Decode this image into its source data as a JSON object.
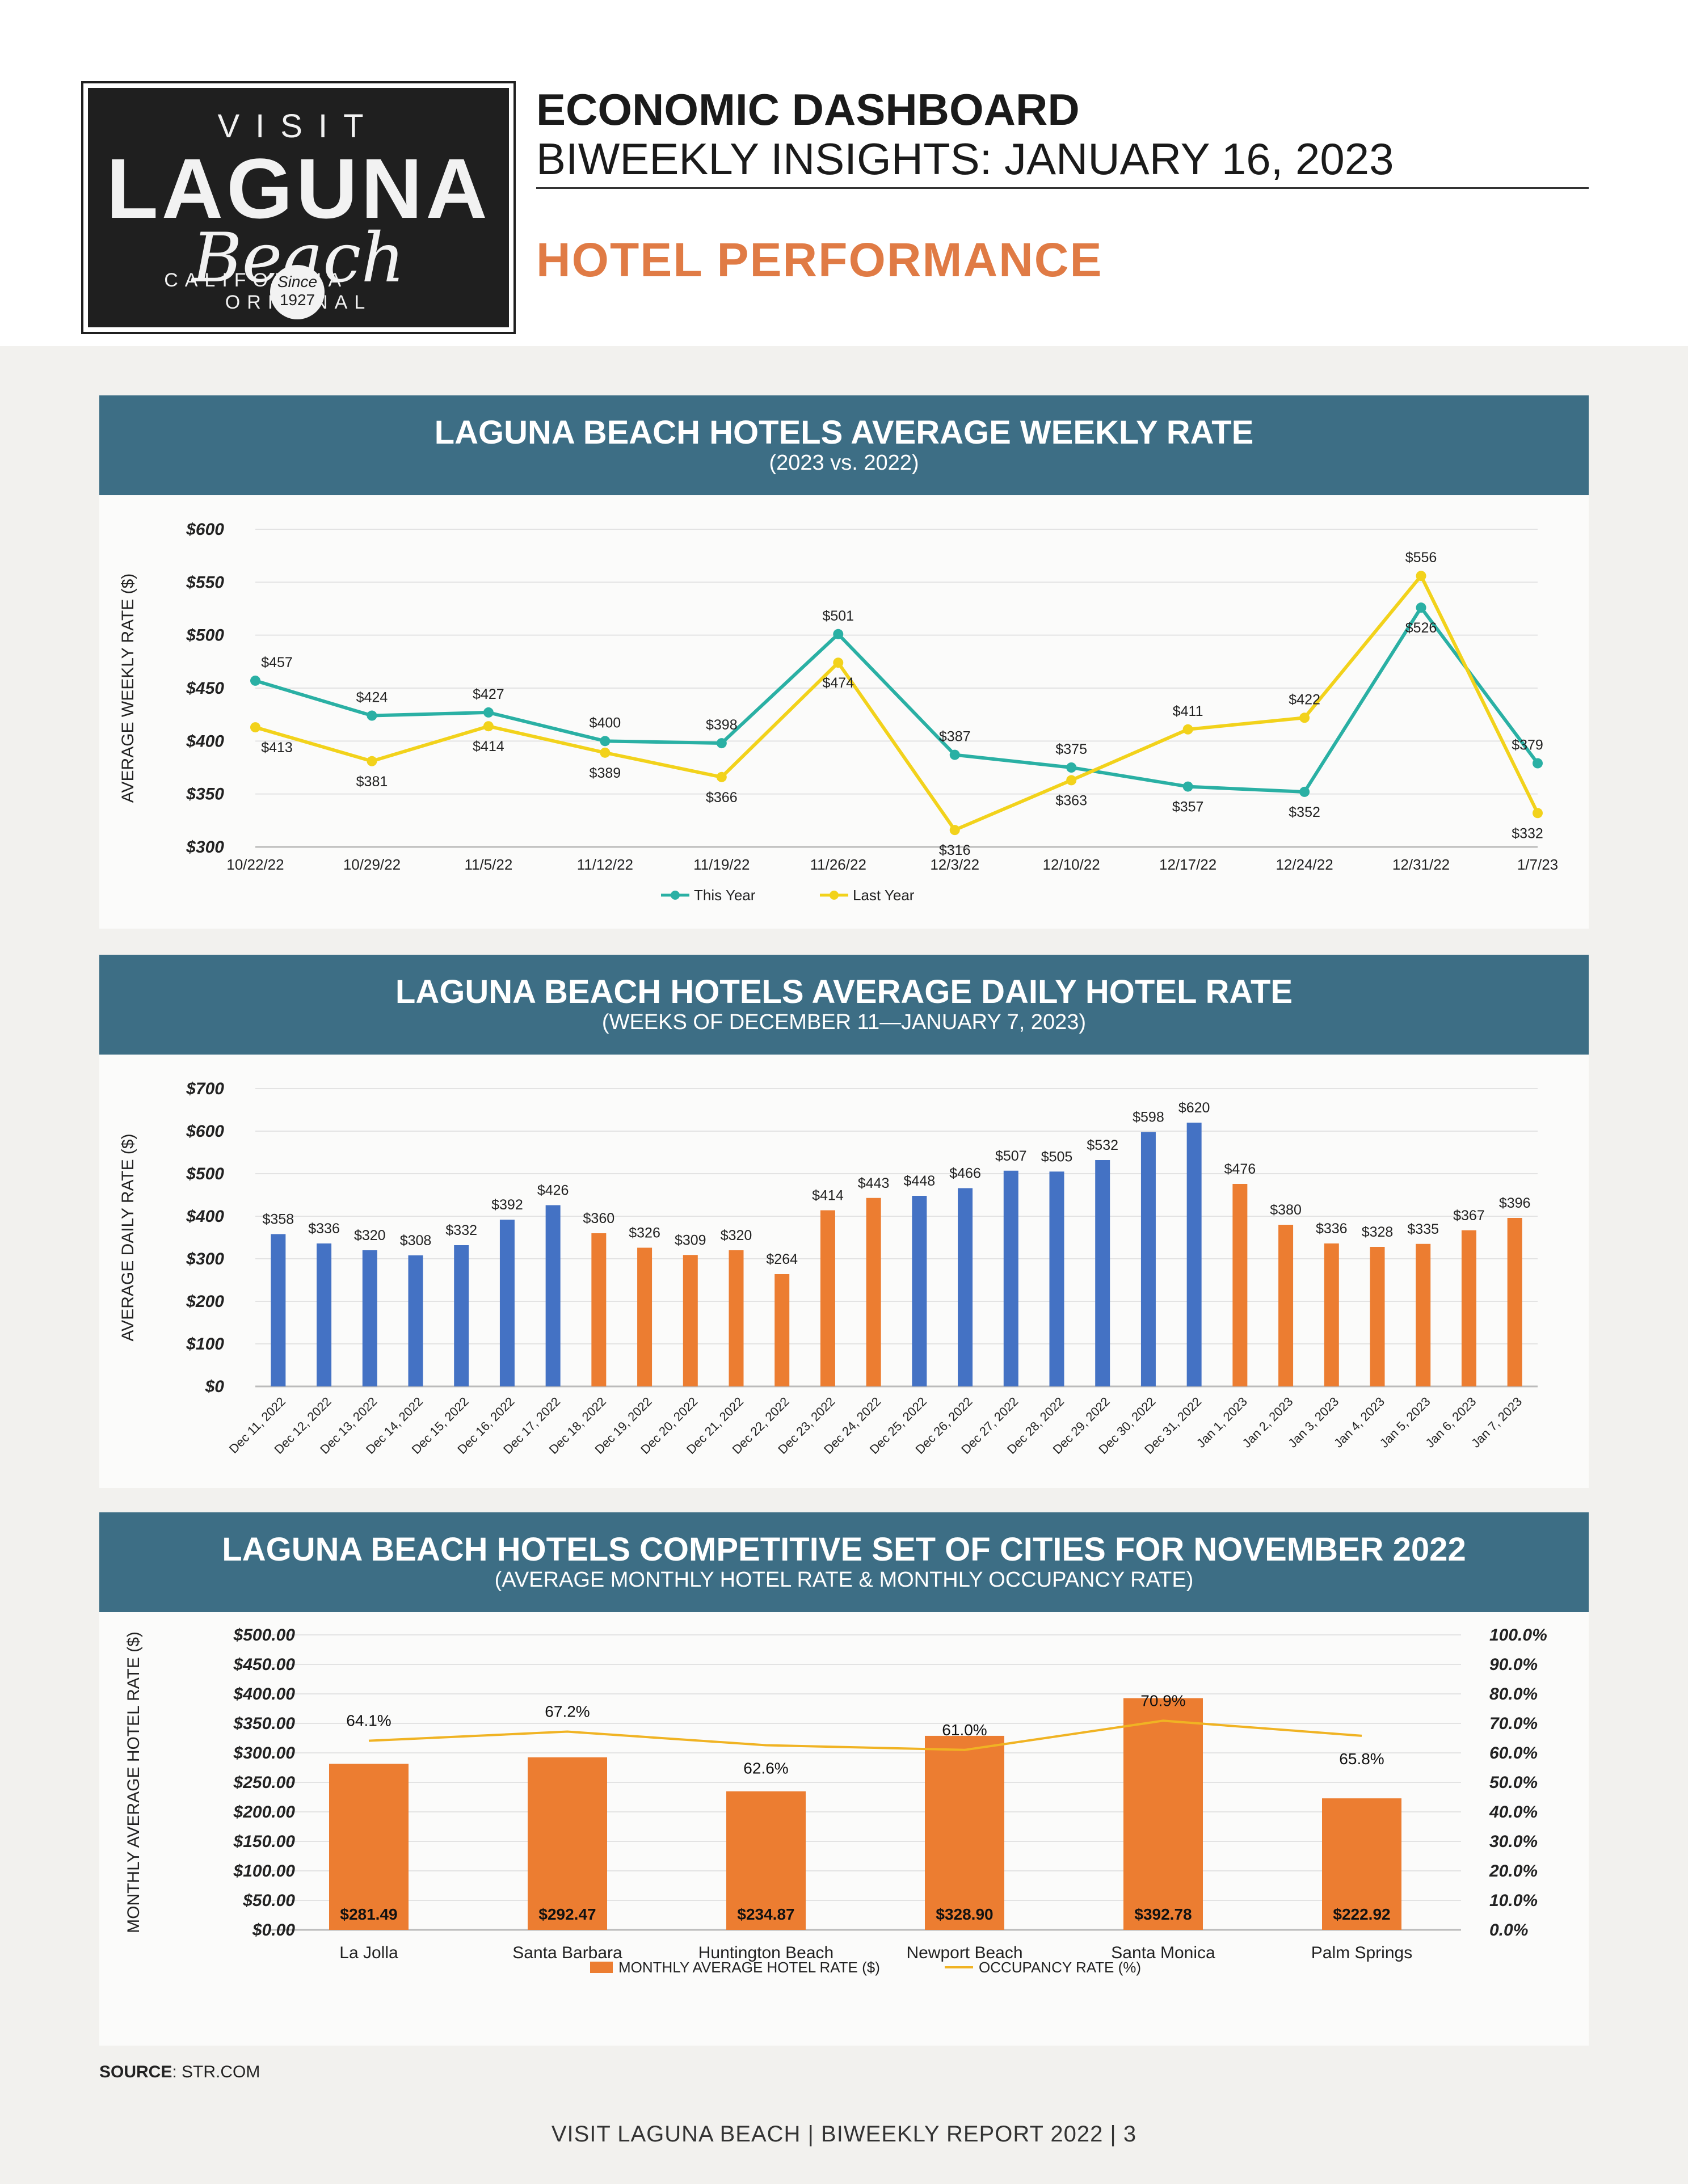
{
  "header": {
    "logo": {
      "visit": "VISIT",
      "laguna": "LAGUNA",
      "beach": "Beach",
      "tagline_left": "CALIFORNIA",
      "tagline_right": "ORIGINAL",
      "since": "Since",
      "year": "1927"
    },
    "title_line1": "ECONOMIC DASHBOARD",
    "title_line2": "BIWEEKLY INSIGHTS: JANUARY 16, 2023",
    "section_title": "HOTEL PERFORMANCE"
  },
  "colors": {
    "band": "#3d6e85",
    "this_year": "#2ab0a4",
    "last_year": "#f2d21b",
    "blue_bar": "#4472c4",
    "orange_bar": "#ec7d31",
    "occupancy": "#f0b323",
    "accent": "#e07b45"
  },
  "chart_data": [
    {
      "type": "line",
      "title": "LAGUNA BEACH HOTELS AVERAGE WEEKLY RATE",
      "subtitle": "(2023 vs. 2022)",
      "ylabel": "AVERAGE WEEKLY RATE ($)",
      "ylim": [
        300,
        600
      ],
      "yticks": [
        "$300",
        "$350",
        "$400",
        "$450",
        "$500",
        "$550",
        "$600"
      ],
      "categories": [
        "10/22/22",
        "10/29/22",
        "11/5/22",
        "11/12/22",
        "11/19/22",
        "11/26/22",
        "12/3/22",
        "12/10/22",
        "12/17/22",
        "12/24/22",
        "12/31/22",
        "1/7/23"
      ],
      "series": [
        {
          "name": "This Year",
          "values": [
            457,
            424,
            427,
            400,
            398,
            501,
            387,
            375,
            357,
            352,
            526,
            379
          ]
        },
        {
          "name": "Last Year",
          "values": [
            413,
            381,
            414,
            389,
            366,
            474,
            316,
            363,
            411,
            422,
            556,
            332
          ]
        }
      ],
      "legend": "bottom"
    },
    {
      "type": "bar",
      "title": "LAGUNA BEACH HOTELS AVERAGE DAILY HOTEL RATE",
      "subtitle": "(WEEKS OF DECEMBER 11—JANUARY 7, 2023)",
      "ylabel": "AVERAGE DAILY RATE ($)",
      "ylim": [
        0,
        700
      ],
      "yticks": [
        "$0",
        "$100",
        "$200",
        "$300",
        "$400",
        "$500",
        "$600",
        "$700"
      ],
      "categories": [
        "Dec 11, 2022",
        "Dec 12, 2022",
        "Dec 13, 2022",
        "Dec 14, 2022",
        "Dec 15, 2022",
        "Dec 16, 2022",
        "Dec 17, 2022",
        "Dec 18, 2022",
        "Dec 19, 2022",
        "Dec 20, 2022",
        "Dec 21, 2022",
        "Dec 22, 2022",
        "Dec 23, 2022",
        "Dec 24, 2022",
        "Dec 25, 2022",
        "Dec 26, 2022",
        "Dec 27, 2022",
        "Dec 28, 2022",
        "Dec 29, 2022",
        "Dec 30, 2022",
        "Dec 31, 2022",
        "Jan 1, 2023",
        "Jan 2, 2023",
        "Jan 3, 2023",
        "Jan 4, 2023",
        "Jan 5, 2023",
        "Jan 6, 2023",
        "Jan 7, 2023"
      ],
      "values": [
        358,
        336,
        320,
        308,
        332,
        392,
        426,
        360,
        326,
        309,
        320,
        264,
        414,
        443,
        448,
        466,
        507,
        505,
        532,
        598,
        620,
        476,
        380,
        336,
        328,
        335,
        367,
        396
      ],
      "labels": [
        "$358",
        "$336",
        "$320",
        "$308",
        "$332",
        "$392",
        "$426",
        "$360",
        "$326",
        "$309",
        "$320",
        "$264",
        "$414",
        "$443",
        "$448",
        "$466",
        "$507",
        "$505",
        "$532",
        "$598",
        "$620",
        "$476",
        "$380",
        "$336",
        "$328",
        "$335",
        "$367",
        "$396"
      ],
      "bar_colors": [
        "blue",
        "blue",
        "blue",
        "blue",
        "blue",
        "blue",
        "blue",
        "orange",
        "orange",
        "orange",
        "orange",
        "orange",
        "orange",
        "orange",
        "blue",
        "blue",
        "blue",
        "blue",
        "blue",
        "blue",
        "blue",
        "orange",
        "orange",
        "orange",
        "orange",
        "orange",
        "orange",
        "orange"
      ]
    },
    {
      "type": "bar",
      "title": "LAGUNA BEACH HOTELS COMPETITIVE SET OF CITIES FOR NOVEMBER 2022",
      "subtitle": "(AVERAGE MONTHLY HOTEL RATE & MONTHLY OCCUPANCY RATE)",
      "ylabel": "MONTHLY AVERAGE HOTEL RATE ($)",
      "ylim": [
        0,
        500
      ],
      "y2lim": [
        0,
        100
      ],
      "yticks": [
        "$0.00",
        "$50.00",
        "$100.00",
        "$150.00",
        "$200.00",
        "$250.00",
        "$300.00",
        "$350.00",
        "$400.00",
        "$450.00",
        "$500.00"
      ],
      "y2ticks": [
        "0.0%",
        "10.0%",
        "20.0%",
        "30.0%",
        "40.0%",
        "50.0%",
        "60.0%",
        "70.0%",
        "80.0%",
        "90.0%",
        "100.0%"
      ],
      "categories": [
        "La Jolla",
        "Santa Barbara",
        "Huntington Beach",
        "Newport Beach",
        "Santa Monica",
        "Palm Springs"
      ],
      "series": [
        {
          "name": "MONTHLY AVERAGE HOTEL RATE ($)",
          "values": [
            281.49,
            292.47,
            234.87,
            328.9,
            392.78,
            222.92
          ],
          "labels": [
            "$281.49",
            "$292.47",
            "$234.87",
            "$328.90",
            "$392.78",
            "$222.92"
          ]
        },
        {
          "name": "OCCUPANCY RATE (%)",
          "values": [
            64.1,
            67.2,
            62.6,
            61.0,
            70.9,
            65.8
          ],
          "labels": [
            "64.1%",
            "67.2%",
            "62.6%",
            "61.0%",
            "70.9%",
            "65.8%"
          ]
        }
      ],
      "legend": "bottom"
    }
  ],
  "source": {
    "label": "SOURCE",
    "value": ": STR.COM"
  },
  "footer": {
    "text": "VISIT LAGUNA BEACH  |  BIWEEKLY REPORT 2022  |  3"
  }
}
